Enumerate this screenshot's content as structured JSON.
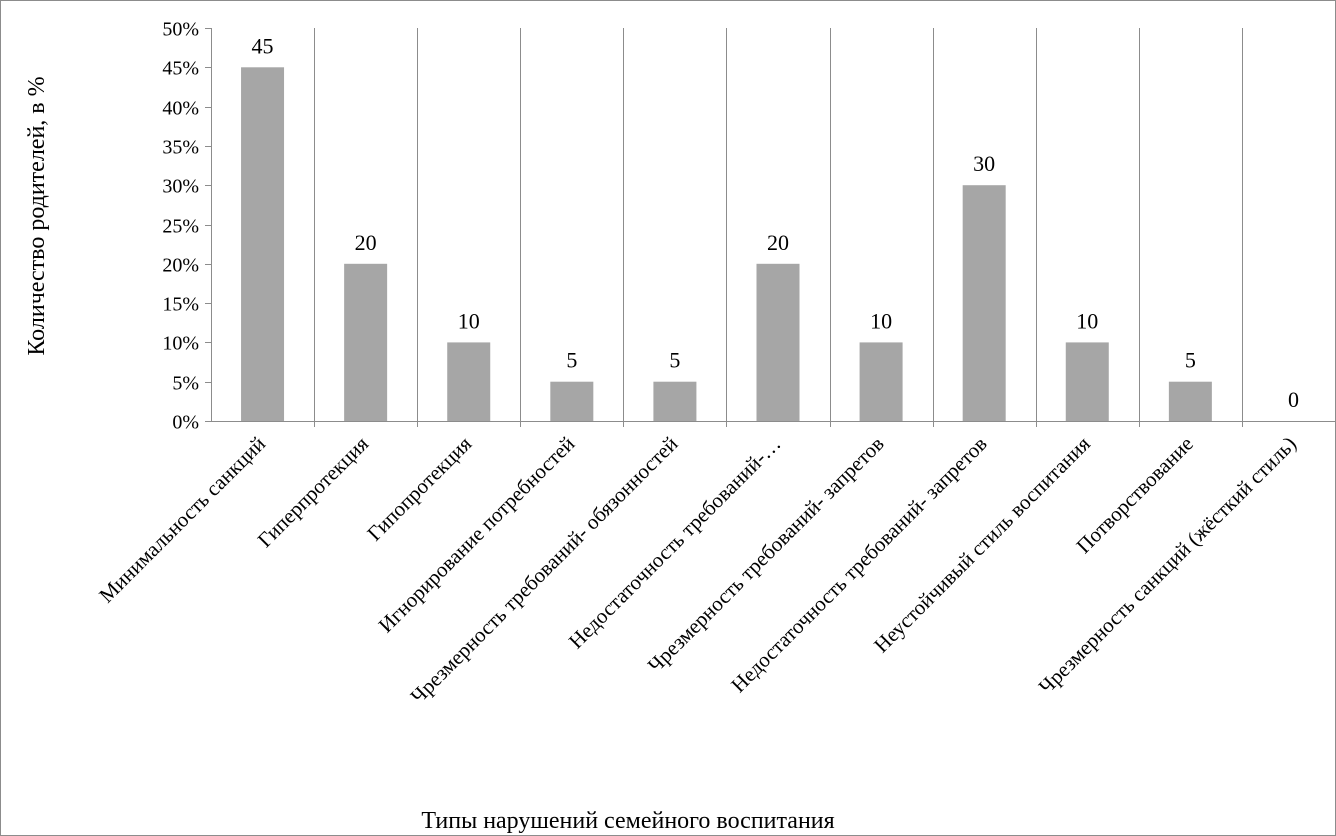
{
  "chart_data": {
    "type": "bar",
    "title": "",
    "xlabel": "Типы нарушений семейного воспитания",
    "ylabel": "Количество родителей, в %",
    "categories": [
      "Минимальность санкций",
      "Гиперпротекция",
      "Гипопротекция",
      "Игнорирование потребностей",
      "Чрезмерность требований- обязонностей",
      "Недостаточность требований-…",
      "Чрезмерность требований- запретов",
      "Недостаточность требований- запретов",
      "Неустойчивый стиль воспитания",
      "Потворствование",
      "Чрезмерность санкций (жёсткий стиль)"
    ],
    "values": [
      45,
      20,
      10,
      5,
      5,
      20,
      10,
      30,
      10,
      5,
      0
    ],
    "data_labels": [
      "45",
      "20",
      "10",
      "5",
      "5",
      "20",
      "10",
      "30",
      "10",
      "5",
      "0"
    ],
    "yticks": [
      "0%",
      "5%",
      "10%",
      "15%",
      "20%",
      "25%",
      "30%",
      "35%",
      "40%",
      "45%",
      "50%"
    ],
    "ylim": [
      0,
      50
    ],
    "grid": "vertical",
    "legend": "none",
    "bar_color": "#a6a6a6",
    "grid_color": "#8c8c8c",
    "axis_color": "#8c8c8c"
  }
}
